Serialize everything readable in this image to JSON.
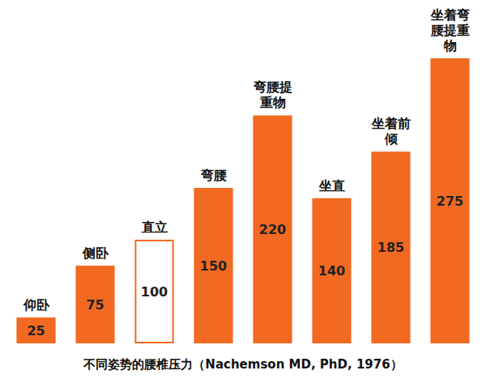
{
  "chart_data": {
    "type": "bar",
    "title": "不同姿势的腰椎压力（Nachemson MD, PhD, 1976）",
    "categories": [
      "仰卧",
      "侧卧",
      "直立",
      "弯腰",
      "弯腰提重物",
      "坐直",
      "坐着前倾",
      "坐着弯腰提重物"
    ],
    "values": [
      25,
      75,
      100,
      150,
      220,
      140,
      185,
      275
    ],
    "color": "#f26a21",
    "colors": [
      "#f26a21",
      "#f26a21",
      "#ffffff",
      "#f26a21",
      "#f26a21",
      "#f26a21",
      "#f26a21",
      "#f26a21"
    ],
    "ylim": [
      0,
      275
    ],
    "grid": false,
    "data_labels": true,
    "tick_labels": false
  }
}
